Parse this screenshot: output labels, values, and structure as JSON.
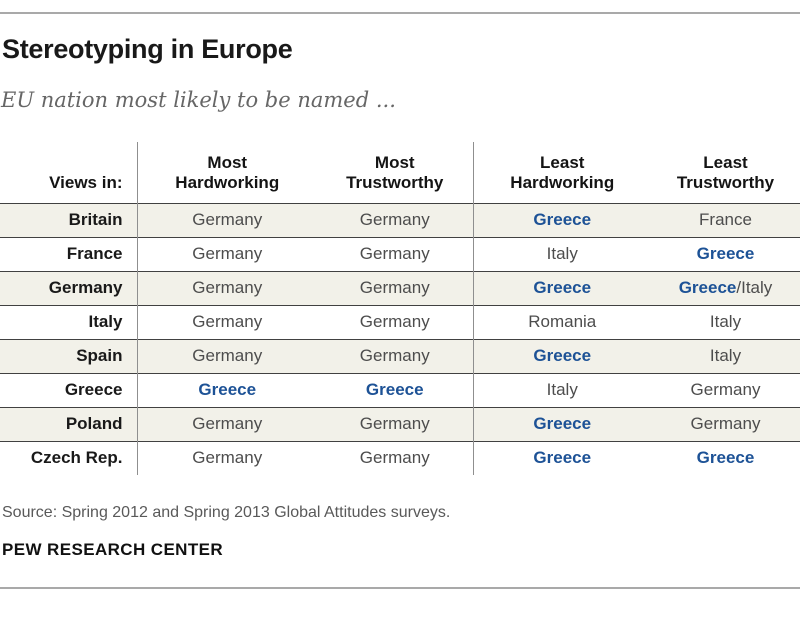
{
  "header": {
    "title": "Stereotyping in Europe",
    "subtitle": "EU nation most likely to be named ..."
  },
  "footer": {
    "source": "Source: Spring 2012 and Spring 2013 Global Attitudes surveys.",
    "branding": "PEW RESEARCH CENTER"
  },
  "chart_data": {
    "type": "table",
    "title": "Stereotyping in Europe",
    "subtitle": "EU nation most likely to be named ...",
    "row_header_label": "Views in:",
    "columns": [
      {
        "line1": "Most",
        "line2": "Hardworking"
      },
      {
        "line1": "Most",
        "line2": "Trustworthy"
      },
      {
        "line1": "Least",
        "line2": "Hardworking"
      },
      {
        "line1": "Least",
        "line2": "Trustworthy"
      }
    ],
    "rows": [
      {
        "label": "Britain",
        "values": [
          "Germany",
          "Germany",
          "Greece",
          "France"
        ]
      },
      {
        "label": "France",
        "values": [
          "Germany",
          "Germany",
          "Italy",
          "Greece"
        ]
      },
      {
        "label": "Germany",
        "values": [
          "Germany",
          "Germany",
          "Greece",
          "Greece/Italy"
        ]
      },
      {
        "label": "Italy",
        "values": [
          "Germany",
          "Germany",
          "Romania",
          "Italy"
        ]
      },
      {
        "label": "Spain",
        "values": [
          "Germany",
          "Germany",
          "Greece",
          "Italy"
        ]
      },
      {
        "label": "Greece",
        "values": [
          "Greece",
          "Greece",
          "Italy",
          "Germany"
        ]
      },
      {
        "label": "Poland",
        "values": [
          "Germany",
          "Germany",
          "Greece",
          "Germany"
        ]
      },
      {
        "label": "Czech Rep.",
        "values": [
          "Germany",
          "Germany",
          "Greece",
          "Greece"
        ]
      }
    ],
    "highlight": {
      "substring": "Greece",
      "color": "#1d5296"
    },
    "zebra_color": "#f2f1e9",
    "legend_position": "none",
    "grid": "row-lines"
  }
}
